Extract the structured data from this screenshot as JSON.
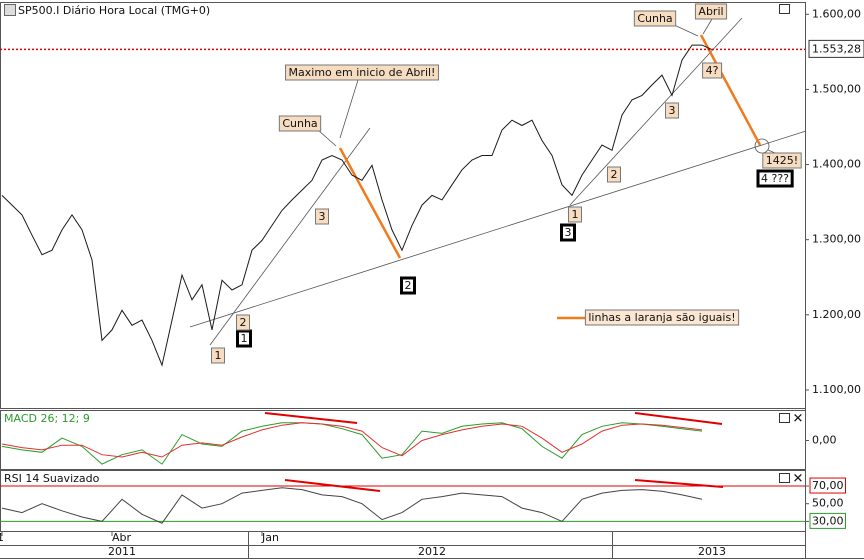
{
  "chart_data": [
    {
      "type": "line",
      "title": "SP500.I Diário Hora Local (TMG+0)",
      "color": "#1a1a1a",
      "x": [
        0,
        1,
        2,
        3,
        4,
        5,
        6,
        7,
        8,
        9,
        10,
        11,
        12,
        13,
        14,
        15,
        16,
        17,
        18,
        19,
        20,
        21,
        22,
        23,
        24,
        25,
        26,
        27,
        28,
        29,
        30,
        31,
        32,
        33,
        34,
        35,
        36,
        37,
        38,
        39,
        40,
        41,
        42,
        43,
        44,
        45,
        46,
        47,
        48,
        49,
        50,
        51,
        52,
        53,
        54,
        55,
        56,
        57,
        58,
        59,
        60,
        61,
        62,
        63,
        64,
        65,
        66,
        67,
        68,
        69,
        70,
        71
      ],
      "values": [
        1359,
        1346,
        1333,
        1306,
        1280,
        1286,
        1313,
        1333,
        1313,
        1273,
        1166,
        1180,
        1206,
        1186,
        1193,
        1166,
        1133,
        1193,
        1253,
        1220,
        1240,
        1180,
        1246,
        1233,
        1240,
        1286,
        1299,
        1319,
        1339,
        1353,
        1366,
        1379,
        1406,
        1412,
        1406,
        1386,
        1379,
        1399,
        1353,
        1313,
        1286,
        1319,
        1346,
        1359,
        1353,
        1373,
        1393,
        1406,
        1412,
        1412,
        1446,
        1459,
        1452,
        1459,
        1432,
        1412,
        1373,
        1359,
        1386,
        1406,
        1426,
        1419,
        1466,
        1486,
        1492,
        1506,
        1519,
        1492,
        1539,
        1559,
        1559,
        1553
      ],
      "xlim": [
        -0.2,
        80.3
      ],
      "xticks": [
        {
          "value": 0,
          "label": "2011"
        },
        {
          "value": 11,
          "label": "Abr"
        },
        {
          "value": 26,
          "label": "Jan"
        }
      ],
      "xticks_year": [
        {
          "value": 12,
          "label": "2011"
        },
        {
          "value": 43,
          "label": "2012"
        },
        {
          "value": 71,
          "label": "2013"
        }
      ],
      "ylim": [
        1076,
        1615
      ],
      "yticks": [
        {
          "value": 1100,
          "label": "1.100,00"
        },
        {
          "value": 1200,
          "label": "1.200,00"
        },
        {
          "value": 1300,
          "label": "1.300,00"
        },
        {
          "value": 1400,
          "label": "1.400,00"
        },
        {
          "value": 1500,
          "label": "1.500,00"
        },
        {
          "value": 1600,
          "label": "1.600,00"
        }
      ],
      "last_price": {
        "value": 1553.28,
        "label": "1.553,28"
      },
      "annotations": [
        "Maximo em inicio de Abril!",
        "Cunha",
        "Cunha",
        "Abril",
        "4?",
        "1425!",
        "4 ???",
        "1",
        "1",
        "2",
        "3",
        "2",
        "1",
        "3",
        "2",
        "3",
        "linhas a laranja são iguais!"
      ]
    },
    {
      "type": "line",
      "title": "MACD 26; 12; 9",
      "xlim": [
        -0.2,
        80.3
      ],
      "ylim": [
        -25,
        25
      ],
      "yticks": [
        {
          "value": 0,
          "label": "0,00"
        }
      ],
      "series": [
        {
          "color": "#2a9d2a",
          "x": [
            0,
            2,
            4,
            6,
            8,
            10,
            12,
            14,
            16,
            18,
            20,
            22,
            24,
            26,
            28,
            30,
            32,
            34,
            36,
            38,
            40,
            42,
            44,
            46,
            48,
            50,
            52,
            54,
            56,
            58,
            60,
            62,
            64,
            66,
            68,
            70
          ],
          "values": [
            -5,
            -8,
            -10,
            2,
            -5,
            -20,
            -12,
            -8,
            -20,
            5,
            -3,
            -5,
            8,
            12,
            15,
            15,
            14,
            10,
            5,
            -15,
            -12,
            8,
            6,
            12,
            14,
            15,
            10,
            -5,
            -15,
            5,
            12,
            15,
            14,
            12,
            10,
            8
          ]
        },
        {
          "color": "#e03030",
          "x": [
            0,
            2,
            4,
            6,
            8,
            10,
            12,
            14,
            16,
            18,
            20,
            22,
            24,
            26,
            28,
            30,
            32,
            34,
            36,
            38,
            40,
            42,
            44,
            46,
            48,
            50,
            52,
            54,
            56,
            58,
            60,
            62,
            64,
            66,
            68,
            70
          ],
          "values": [
            -3,
            -6,
            -8,
            -4,
            -4,
            -12,
            -14,
            -10,
            -14,
            -4,
            -2,
            -4,
            3,
            9,
            13,
            15,
            14,
            12,
            8,
            -6,
            -13,
            0,
            5,
            9,
            12,
            14,
            12,
            2,
            -10,
            -3,
            8,
            13,
            14,
            13,
            11,
            9
          ]
        }
      ]
    },
    {
      "type": "line",
      "title": "RSI 14 Suavizado",
      "xlim": [
        -0.2,
        80.3
      ],
      "ylim": [
        18,
        87
      ],
      "yticks": [
        {
          "value": 30,
          "label": "30,00"
        },
        {
          "value": 50,
          "label": "50,00"
        },
        {
          "value": 70,
          "label": "70,00"
        }
      ],
      "level_colors": [
        "#2a9d2a",
        null,
        "#e00000"
      ],
      "series": [
        {
          "color": "#444444",
          "x": [
            0,
            2,
            4,
            6,
            8,
            10,
            12,
            14,
            16,
            18,
            20,
            22,
            24,
            26,
            28,
            30,
            32,
            34,
            36,
            38,
            40,
            42,
            44,
            46,
            48,
            50,
            52,
            54,
            56,
            58,
            60,
            62,
            64,
            66,
            68,
            70
          ],
          "values": [
            45,
            40,
            50,
            42,
            35,
            30,
            55,
            38,
            28,
            60,
            45,
            50,
            62,
            65,
            68,
            66,
            60,
            58,
            50,
            32,
            40,
            55,
            58,
            62,
            60,
            58,
            45,
            40,
            30,
            55,
            62,
            65,
            66,
            64,
            60,
            55
          ]
        }
      ]
    }
  ]
}
